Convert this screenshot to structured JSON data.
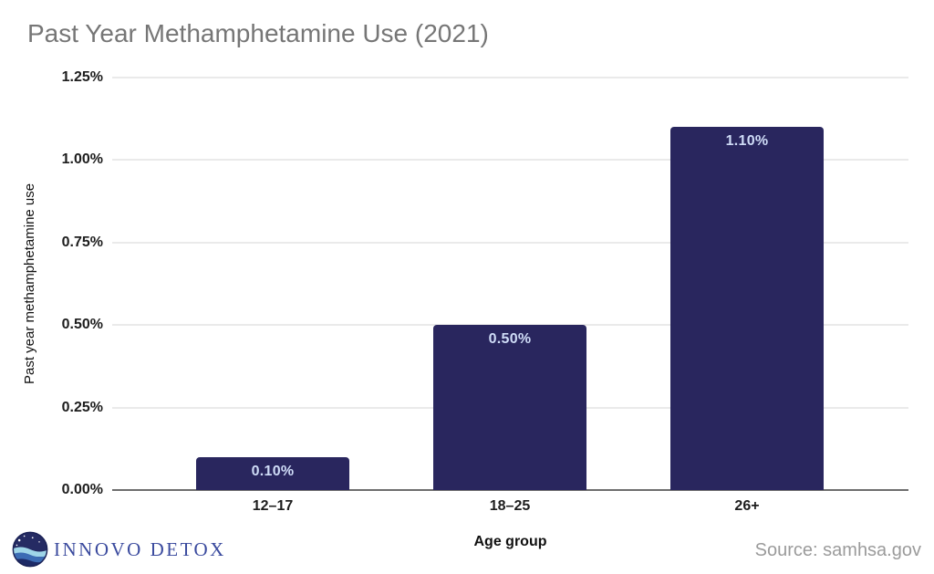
{
  "chart": {
    "title": "Past Year Methamphetamine Use (2021)",
    "ylabel": "Past year methamphetamine use",
    "xlabel": "Age group"
  },
  "chart_data": {
    "type": "bar",
    "title": "Past Year Methamphetamine Use (2021)",
    "categories": [
      "12–17",
      "18–25",
      "26+"
    ],
    "values": [
      0.1,
      0.5,
      1.1
    ],
    "value_labels": [
      "0.10%",
      "0.50%",
      "1.10%"
    ],
    "xlabel": "Age group",
    "ylabel": "Past year methamphetamine use",
    "ylim": [
      0,
      1.25
    ],
    "yticks": [
      0,
      0.25,
      0.5,
      0.75,
      1.0,
      1.25
    ],
    "ytick_labels": [
      "0.00%",
      "0.25%",
      "0.50%",
      "0.75%",
      "1.00%",
      "1.25%"
    ],
    "grid": true,
    "legend": false,
    "bar_color": "#29265e",
    "value_label_color": "#cfdcf7"
  },
  "footer": {
    "logo_text": "INNOVO DETOX",
    "source": "Source: samhsa.gov"
  },
  "colors": {
    "title": "#767676",
    "gridline": "#eaeaea",
    "axis_line": "#6e6e6e",
    "tick_text": "#1d1d1d",
    "source_text": "#9b9b9b",
    "logo_text": "#3a4a9e"
  }
}
